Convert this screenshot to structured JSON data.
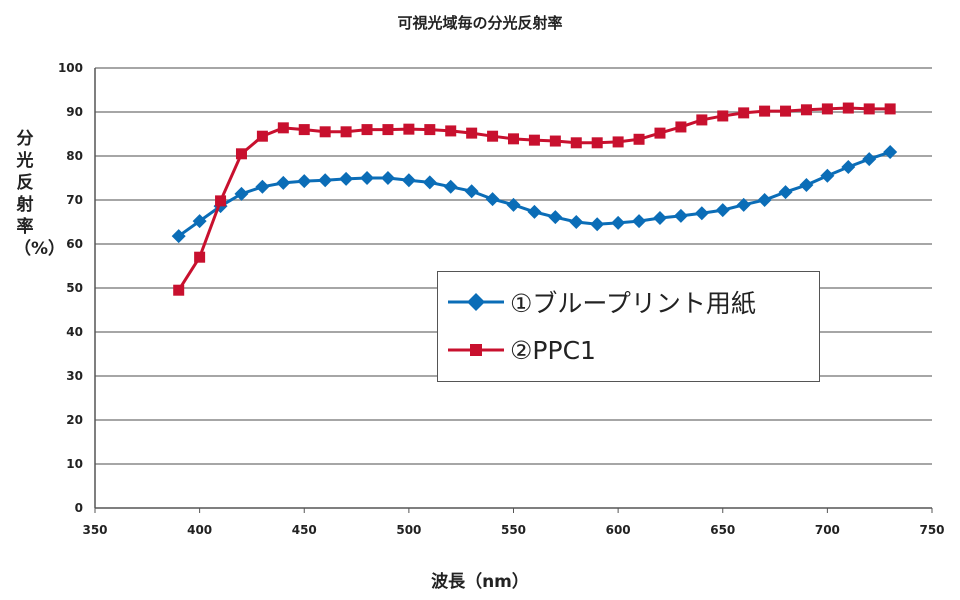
{
  "chart_data": {
    "type": "line",
    "title": "可視光域毎の分光反射率",
    "xlabel": "波長（nm）",
    "ylabel": "分光反射率（%）",
    "xlim": [
      350,
      750
    ],
    "ylim": [
      0,
      100
    ],
    "xticks": [
      350,
      400,
      450,
      500,
      550,
      600,
      650,
      700,
      750
    ],
    "yticks": [
      0,
      10,
      20,
      30,
      40,
      50,
      60,
      70,
      80,
      90,
      100
    ],
    "grid": "horizontal",
    "legend_position": "center-right",
    "x": [
      390,
      400,
      410,
      420,
      430,
      440,
      450,
      460,
      470,
      480,
      490,
      500,
      510,
      520,
      530,
      540,
      550,
      560,
      570,
      580,
      590,
      600,
      610,
      620,
      630,
      640,
      650,
      660,
      670,
      680,
      690,
      700,
      710,
      720,
      730
    ],
    "series": [
      {
        "name": "①ブループリント用紙",
        "color": "#0b6db7",
        "marker": "diamond",
        "values": [
          61.8,
          65.2,
          68.6,
          71.4,
          73,
          73.9,
          74.3,
          74.5,
          74.8,
          75,
          75,
          74.5,
          74,
          73,
          72,
          70.2,
          68.9,
          67.3,
          66.1,
          65,
          64.5,
          64.8,
          65.2,
          65.9,
          66.4,
          67,
          67.7,
          68.9,
          70,
          71.8,
          73.4,
          75.5,
          77.5,
          79.3,
          80.9
        ]
      },
      {
        "name": "②PPC1",
        "color": "#c8102e",
        "marker": "square",
        "values": [
          49.5,
          57,
          69.8,
          80.5,
          84.5,
          86.4,
          86,
          85.5,
          85.5,
          86,
          86,
          86.1,
          86,
          85.7,
          85.2,
          84.5,
          83.9,
          83.6,
          83.4,
          83,
          83,
          83.2,
          83.8,
          85.2,
          86.6,
          88.2,
          89.1,
          89.8,
          90.2,
          90.2,
          90.5,
          90.7,
          90.9,
          90.7,
          90.7
        ]
      }
    ]
  }
}
